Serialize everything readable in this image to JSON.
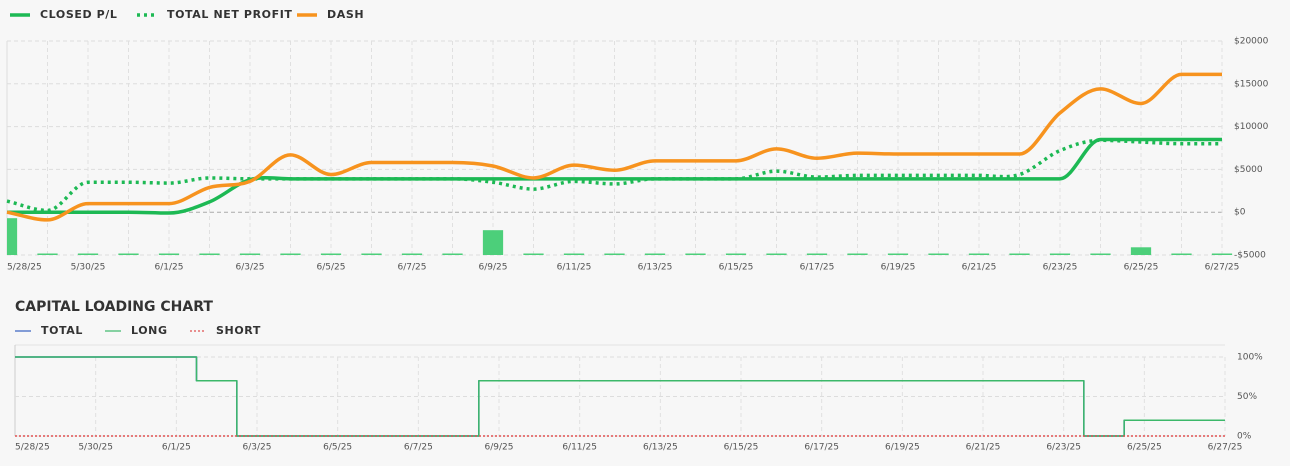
{
  "chart_data": [
    {
      "type": "line",
      "smooth": true,
      "grid": true,
      "categories": [
        "5/28/25",
        null,
        "5/30/25",
        null,
        "6/1/25",
        null,
        "6/3/25",
        null,
        "6/5/25",
        null,
        "6/7/25",
        null,
        "6/9/25",
        null,
        "6/11/25",
        null,
        "6/13/25",
        null,
        "6/15/25",
        null,
        "6/17/25",
        null,
        "6/19/25",
        null,
        "6/21/25",
        null,
        "6/23/25",
        null,
        "6/25/25",
        null,
        "6/27/25"
      ],
      "series": [
        {
          "name": "CLOSED P/L",
          "color": "#1db954",
          "style": "solid",
          "values": [
            0,
            0,
            0,
            0,
            -100,
            1200,
            3800,
            3900,
            3900,
            3900,
            3900,
            3900,
            3900,
            3900,
            3900,
            3900,
            3900,
            3900,
            3900,
            3900,
            3900,
            3900,
            3900,
            3900,
            3900,
            3900,
            3900,
            8500,
            8500,
            8500,
            8500
          ]
        },
        {
          "name": "TOTAL NET PROFIT",
          "color": "#1db954",
          "style": "dotted",
          "values": [
            1300,
            200,
            3500,
            3500,
            3400,
            4000,
            3900,
            3900,
            3900,
            3900,
            3900,
            3900,
            3500,
            2700,
            3600,
            3300,
            3900,
            3900,
            3900,
            4800,
            4100,
            4300,
            4300,
            4300,
            4300,
            4400,
            7200,
            8400,
            8200,
            8000,
            8000
          ]
        },
        {
          "name": "DASH",
          "color": "#f7931e",
          "style": "solid",
          "values": [
            0,
            -900,
            1000,
            1000,
            1000,
            2900,
            3600,
            6700,
            4400,
            5800,
            5800,
            5800,
            5400,
            4000,
            5500,
            4900,
            6000,
            6000,
            6000,
            7400,
            6300,
            6900,
            6800,
            6800,
            6800,
            6800,
            11600,
            14400,
            12700,
            16100,
            16100
          ]
        },
        {
          "type": "bar",
          "color": "#4ccf7a",
          "values": [
            -700,
            -5000,
            -5000,
            -5000,
            -5000,
            -5000,
            -5000,
            -5000,
            -5000,
            -5000,
            -5000,
            -5000,
            -2100,
            -5000,
            -5000,
            -5000,
            -5000,
            -5000,
            -5000,
            -5000,
            -5000,
            -5000,
            -5000,
            -5000,
            -5000,
            -5000,
            -5000,
            -5000,
            -4100,
            -5000,
            -5000
          ]
        }
      ],
      "ylim": [
        -5000,
        20000
      ],
      "yticks": [
        {
          "value": 20000,
          "label": "$20000"
        },
        {
          "value": 15000,
          "label": "$15000"
        },
        {
          "value": 10000,
          "label": "$10000"
        },
        {
          "value": 5000,
          "label": "$5000"
        },
        {
          "value": 0,
          "label": "$0"
        },
        {
          "value": -5000,
          "label": "-$5000"
        }
      ]
    },
    {
      "type": "line",
      "step": true,
      "grid": true,
      "title": "CAPITAL LOADING CHART",
      "categories": [
        "5/28/25",
        null,
        "5/30/25",
        null,
        "6/1/25",
        null,
        "6/3/25",
        null,
        "6/5/25",
        null,
        "6/7/25",
        null,
        "6/9/25",
        null,
        "6/11/25",
        null,
        "6/13/25",
        null,
        "6/15/25",
        null,
        "6/17/25",
        null,
        "6/19/25",
        null,
        "6/21/25",
        null,
        "6/23/25",
        null,
        "6/25/25",
        null,
        "6/27/25"
      ],
      "series": [
        {
          "name": "TOTAL",
          "color": "#3461c1",
          "style": "solid",
          "values": [
            100,
            100,
            100,
            100,
            100,
            70,
            0,
            0,
            0,
            0,
            0,
            0,
            70,
            70,
            70,
            70,
            70,
            70,
            70,
            70,
            70,
            70,
            70,
            70,
            70,
            70,
            70,
            0,
            20,
            20,
            20
          ]
        },
        {
          "name": "LONG",
          "color": "#3cb86a",
          "style": "solid",
          "values": [
            100,
            100,
            100,
            100,
            100,
            70,
            0,
            0,
            0,
            0,
            0,
            0,
            70,
            70,
            70,
            70,
            70,
            70,
            70,
            70,
            70,
            70,
            70,
            70,
            70,
            70,
            70,
            0,
            20,
            20,
            20
          ]
        },
        {
          "name": "SHORT",
          "color": "#e05050",
          "style": "dotted",
          "values": [
            0,
            0,
            0,
            0,
            0,
            0,
            0,
            0,
            0,
            0,
            0,
            0,
            0,
            0,
            0,
            0,
            0,
            0,
            0,
            0,
            0,
            0,
            0,
            0,
            0,
            0,
            0,
            0,
            0,
            0,
            0
          ]
        }
      ],
      "ylim": [
        0,
        100
      ],
      "yticks": [
        {
          "value": 100,
          "label": "100%"
        },
        {
          "value": 50,
          "label": "50%"
        },
        {
          "value": 0,
          "label": "0%"
        }
      ]
    }
  ]
}
